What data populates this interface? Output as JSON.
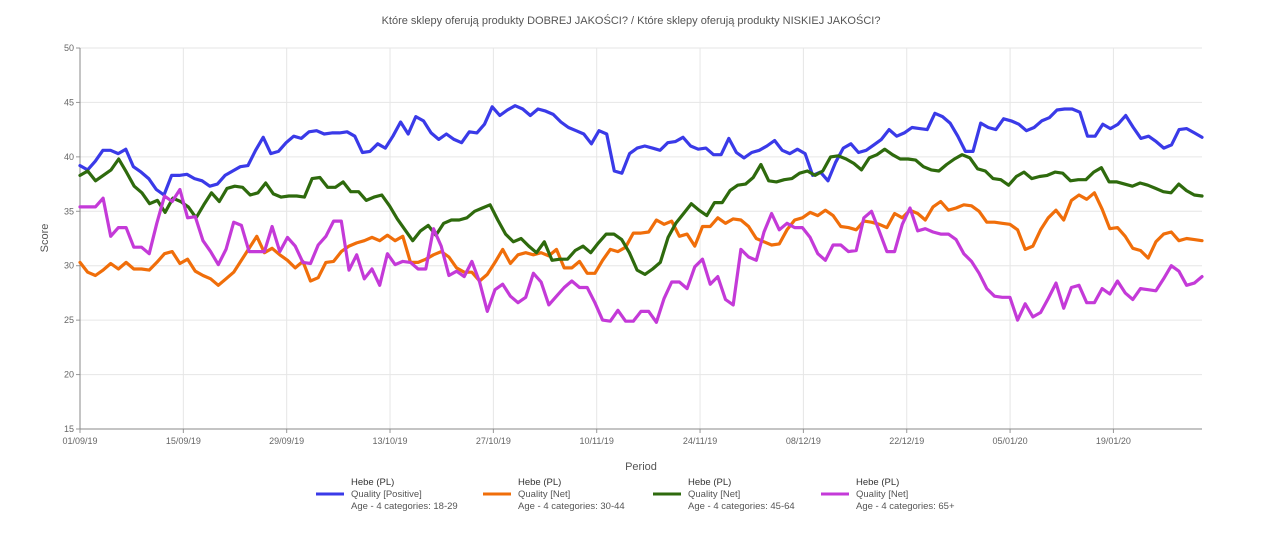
{
  "chart_data": {
    "type": "line",
    "title": "Które sklepy oferują produkty DOBREJ JAKOŚCI? / Które sklepy oferują produkty NISKIEJ JAKOŚCI?",
    "xlabel": "Period",
    "ylabel": "Score",
    "ylim": [
      15,
      50
    ],
    "yticks": [
      15,
      20,
      25,
      30,
      35,
      40,
      45,
      50
    ],
    "x_start": "2019-09-01",
    "x_end": "2020-01-31",
    "xticks": [
      "01/09/19",
      "15/09/19",
      "29/09/19",
      "13/10/19",
      "27/10/19",
      "10/11/19",
      "24/11/19",
      "08/12/19",
      "22/12/19",
      "05/01/20",
      "19/01/20"
    ],
    "grid": true,
    "legend_position": "bottom",
    "series": [
      {
        "name": "Hebe (PL) | Quality [Positive] | Age - 4 categories: 18-29",
        "legend_lines": [
          "Hebe (PL)",
          "Quality [Positive]",
          "Age - 4 categories: 18-29"
        ],
        "color": "#3a3ae8",
        "values": [
          39.2,
          38.8,
          39.6,
          40.6,
          40.6,
          40.3,
          40.7,
          39.1,
          38.6,
          38.0,
          37.0,
          36.5,
          38.3,
          38.3,
          38.4,
          38.0,
          37.8,
          37.3,
          37.5,
          38.3,
          38.7,
          39.1,
          39.2,
          40.6,
          41.8,
          40.3,
          40.5,
          41.3,
          41.9,
          41.7,
          42.3,
          42.4,
          42.1,
          42.2,
          42.2,
          42.3,
          41.9,
          40.4,
          40.5,
          41.2,
          40.8,
          41.9,
          43.2,
          42.1,
          43.7,
          43.3,
          42.2,
          41.6,
          42.1,
          41.6,
          41.3,
          42.3,
          42.2,
          43.0,
          44.6,
          43.8,
          44.3,
          44.7,
          44.4,
          43.8,
          44.4,
          44.2,
          43.9,
          43.2,
          42.7,
          42.4,
          42.1,
          41.2,
          42.4,
          42.1,
          38.7,
          38.5,
          40.3,
          40.8,
          41.0,
          40.8,
          40.6,
          41.3,
          41.4,
          41.8,
          41.0,
          40.7,
          40.8,
          40.2,
          40.2,
          41.7,
          40.4,
          39.9,
          40.4,
          40.6,
          41.0,
          41.5,
          40.6,
          40.3,
          40.7,
          40.3,
          38.3,
          38.6,
          37.8,
          39.5,
          40.8,
          41.2,
          40.4,
          40.6,
          41.1,
          41.6,
          42.5,
          41.9,
          42.2,
          42.7,
          42.6,
          42.5,
          44.0,
          43.7,
          43.1,
          41.9,
          40.5,
          40.5,
          43.1,
          42.7,
          42.5,
          43.5,
          43.3,
          43.0,
          42.4,
          42.7,
          43.3,
          43.6,
          44.3,
          44.4,
          44.4,
          44.1,
          41.9,
          41.9,
          43.0,
          42.6,
          43.0,
          43.8,
          42.7,
          41.7,
          41.9,
          41.4,
          40.8,
          41.1,
          42.5,
          42.6,
          42.2,
          41.8
        ]
      },
      {
        "name": "Hebe (PL) | Quality [Net] | Age - 4 categories: 30-44",
        "legend_lines": [
          "Hebe (PL)",
          "Quality [Net]",
          "Age - 4 categories: 30-44"
        ],
        "color": "#f06e0a",
        "values": [
          30.3,
          29.4,
          29.1,
          29.6,
          30.2,
          29.7,
          30.3,
          29.7,
          29.7,
          29.6,
          30.3,
          31.1,
          31.3,
          30.2,
          30.6,
          29.5,
          29.1,
          28.8,
          28.2,
          28.8,
          29.4,
          30.5,
          31.6,
          32.7,
          31.2,
          31.6,
          31.0,
          30.5,
          29.8,
          30.4,
          28.6,
          28.9,
          30.3,
          30.4,
          31.3,
          31.8,
          32.1,
          32.3,
          32.6,
          32.3,
          32.8,
          32.3,
          32.7,
          30.3,
          30.3,
          30.6,
          31.0,
          31.3,
          30.8,
          29.8,
          29.4,
          29.4,
          28.6,
          29.2,
          30.3,
          31.5,
          30.2,
          31.0,
          31.2,
          31.0,
          31.2,
          30.9,
          31.5,
          29.8,
          29.8,
          30.4,
          29.3,
          29.3,
          30.5,
          31.5,
          31.3,
          31.7,
          33.0,
          33.0,
          33.1,
          34.2,
          33.8,
          34.1,
          32.7,
          32.9,
          31.8,
          33.6,
          33.6,
          34.4,
          33.9,
          34.3,
          34.2,
          33.6,
          32.5,
          32.2,
          31.9,
          32.0,
          33.3,
          34.2,
          34.4,
          34.9,
          34.6,
          35.1,
          34.6,
          33.6,
          33.5,
          33.3,
          34.1,
          34.0,
          33.8,
          33.5,
          34.8,
          34.4,
          35.1,
          34.8,
          34.2,
          35.4,
          35.9,
          35.1,
          35.3,
          35.6,
          35.5,
          35.0,
          34.0,
          34.0,
          33.9,
          33.8,
          33.3,
          31.5,
          31.8,
          33.3,
          34.4,
          35.1,
          34.2,
          36.0,
          36.5,
          36.1,
          36.7,
          35.2,
          33.4,
          33.5,
          32.7,
          31.6,
          31.4,
          30.7,
          32.2,
          32.9,
          33.1,
          32.3,
          32.5,
          32.4,
          32.3
        ]
      },
      {
        "name": "Hebe (PL) | Quality [Net] | Age - 4 categories: 45-64",
        "legend_lines": [
          "Hebe (PL)",
          "Quality [Net]",
          "Age - 4 categories: 45-64"
        ],
        "color": "#2e6a0d",
        "values": [
          38.3,
          38.7,
          37.8,
          38.3,
          38.8,
          39.8,
          38.6,
          37.3,
          36.7,
          35.7,
          36.0,
          34.9,
          36.2,
          35.9,
          35.4,
          34.4,
          35.6,
          36.7,
          35.9,
          37.1,
          37.3,
          37.2,
          36.5,
          36.7,
          37.6,
          36.6,
          36.3,
          36.4,
          36.4,
          36.3,
          38.0,
          38.1,
          37.2,
          37.2,
          37.7,
          36.8,
          36.8,
          36.0,
          36.3,
          36.5,
          35.5,
          34.3,
          33.3,
          32.3,
          33.2,
          33.7,
          32.8,
          33.9,
          34.2,
          34.2,
          34.4,
          35.0,
          35.3,
          35.6,
          34.2,
          32.9,
          32.2,
          32.5,
          31.8,
          31.2,
          32.2,
          30.5,
          30.6,
          30.6,
          31.4,
          31.8,
          31.2,
          32.1,
          32.9,
          32.9,
          32.4,
          31.2,
          29.6,
          29.2,
          29.7,
          30.3,
          32.6,
          33.9,
          34.8,
          35.7,
          35.1,
          34.6,
          35.8,
          35.8,
          36.9,
          37.4,
          37.5,
          38.1,
          39.3,
          37.8,
          37.7,
          37.9,
          38.0,
          38.5,
          38.7,
          38.3,
          38.7,
          40.0,
          40.1,
          39.8,
          39.4,
          38.8,
          39.9,
          40.2,
          40.7,
          40.2,
          39.8,
          39.8,
          39.7,
          39.1,
          38.8,
          38.7,
          39.3,
          39.8,
          40.2,
          39.9,
          38.9,
          38.7,
          38.0,
          37.9,
          37.4,
          38.2,
          38.6,
          38.0,
          38.2,
          38.3,
          38.6,
          38.5,
          37.8,
          37.9,
          37.9,
          38.6,
          39.0,
          37.7,
          37.7,
          37.5,
          37.3,
          37.6,
          37.4,
          37.1,
          36.8,
          36.7,
          37.5,
          36.9,
          36.5,
          36.4
        ]
      },
      {
        "name": "Hebe (PL) | Quality [Net] | Age - 4 categories: 65+",
        "legend_lines": [
          "Hebe (PL)",
          "Quality [Net]",
          "Age - 4 categories: 65+"
        ],
        "color": "#c43ad8",
        "values": [
          35.4,
          35.4,
          35.4,
          36.2,
          32.7,
          33.5,
          33.5,
          31.7,
          31.7,
          31.1,
          33.9,
          36.4,
          35.9,
          37.0,
          34.4,
          34.5,
          32.3,
          31.3,
          30.1,
          31.5,
          34.0,
          33.7,
          31.3,
          31.3,
          31.3,
          33.6,
          31.3,
          32.6,
          31.8,
          30.3,
          30.2,
          31.9,
          32.7,
          34.1,
          34.1,
          29.6,
          31.0,
          28.8,
          29.7,
          28.2,
          31.1,
          30.1,
          30.4,
          30.3,
          29.7,
          29.7,
          33.4,
          31.8,
          29.1,
          29.5,
          29.0,
          30.4,
          28.5,
          25.8,
          27.8,
          28.3,
          27.2,
          26.6,
          27.1,
          29.3,
          28.5,
          26.4,
          27.2,
          28.0,
          28.6,
          28.0,
          28.0,
          26.6,
          25.0,
          24.9,
          25.9,
          24.9,
          24.9,
          25.8,
          25.8,
          24.8,
          27.0,
          28.5,
          28.5,
          27.9,
          29.9,
          30.6,
          28.3,
          29.0,
          26.9,
          26.4,
          31.5,
          30.8,
          30.5,
          33.1,
          34.8,
          33.3,
          33.9,
          33.5,
          33.5,
          32.6,
          31.1,
          30.5,
          31.9,
          31.9,
          31.3,
          31.4,
          34.4,
          35.0,
          33.2,
          31.3,
          31.3,
          33.8,
          35.3,
          33.2,
          33.4,
          33.1,
          32.9,
          32.9,
          32.4,
          31.1,
          30.4,
          29.3,
          27.9,
          27.2,
          27.1,
          27.1,
          25.0,
          26.5,
          25.3,
          25.7,
          27.0,
          28.4,
          26.1,
          28.0,
          28.2,
          26.6,
          26.6,
          27.9,
          27.4,
          28.6,
          27.5,
          26.9,
          27.9,
          27.8,
          27.7,
          28.8,
          30.0,
          29.5,
          28.2,
          28.4,
          29.0
        ]
      }
    ]
  }
}
